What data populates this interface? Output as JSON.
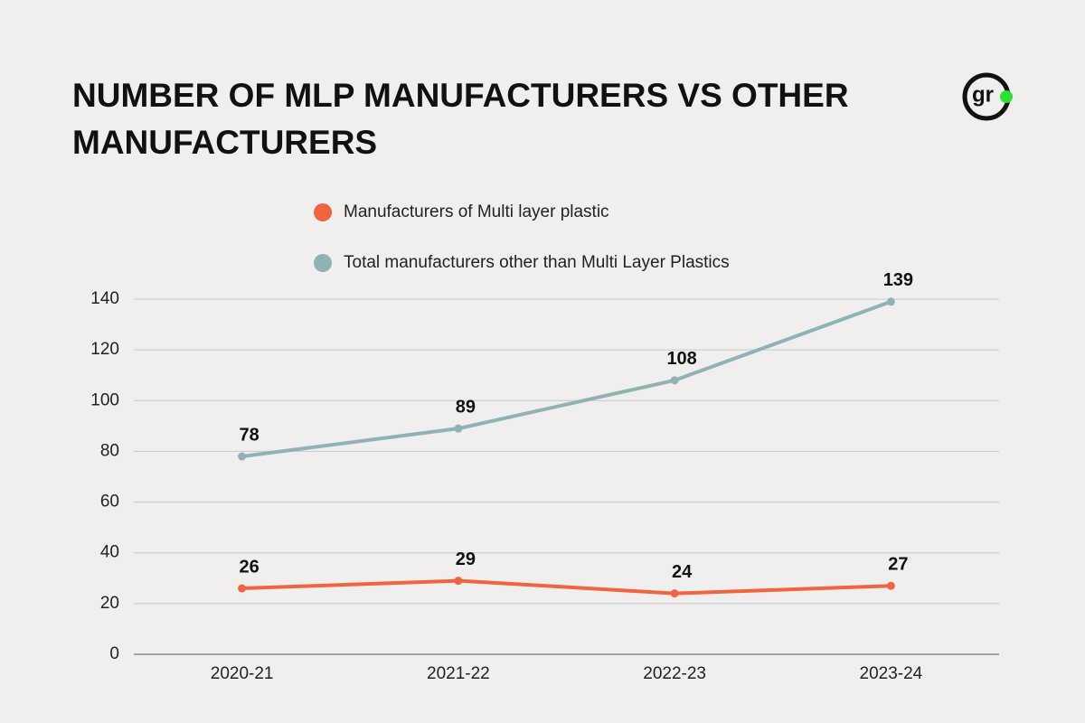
{
  "logo": "gr",
  "chart_data": {
    "type": "line",
    "title": "NUMBER OF MLP MANUFACTURERS VS OTHER MANUFACTURERS",
    "categories": [
      "2020-21",
      "2021-22",
      "2022-23",
      "2023-24"
    ],
    "series": [
      {
        "name": "Manufacturers of Multi layer plastic",
        "color": "#f26440",
        "values": [
          26,
          29,
          24,
          27
        ]
      },
      {
        "name": "Total manufacturers other than Multi Layer Plastics",
        "color": "#8fb3b5",
        "values": [
          78,
          89,
          108,
          139
        ]
      }
    ],
    "ylim": [
      0,
      140
    ],
    "yticks": [
      0,
      20,
      40,
      60,
      80,
      100,
      120,
      140
    ],
    "grid": true
  }
}
